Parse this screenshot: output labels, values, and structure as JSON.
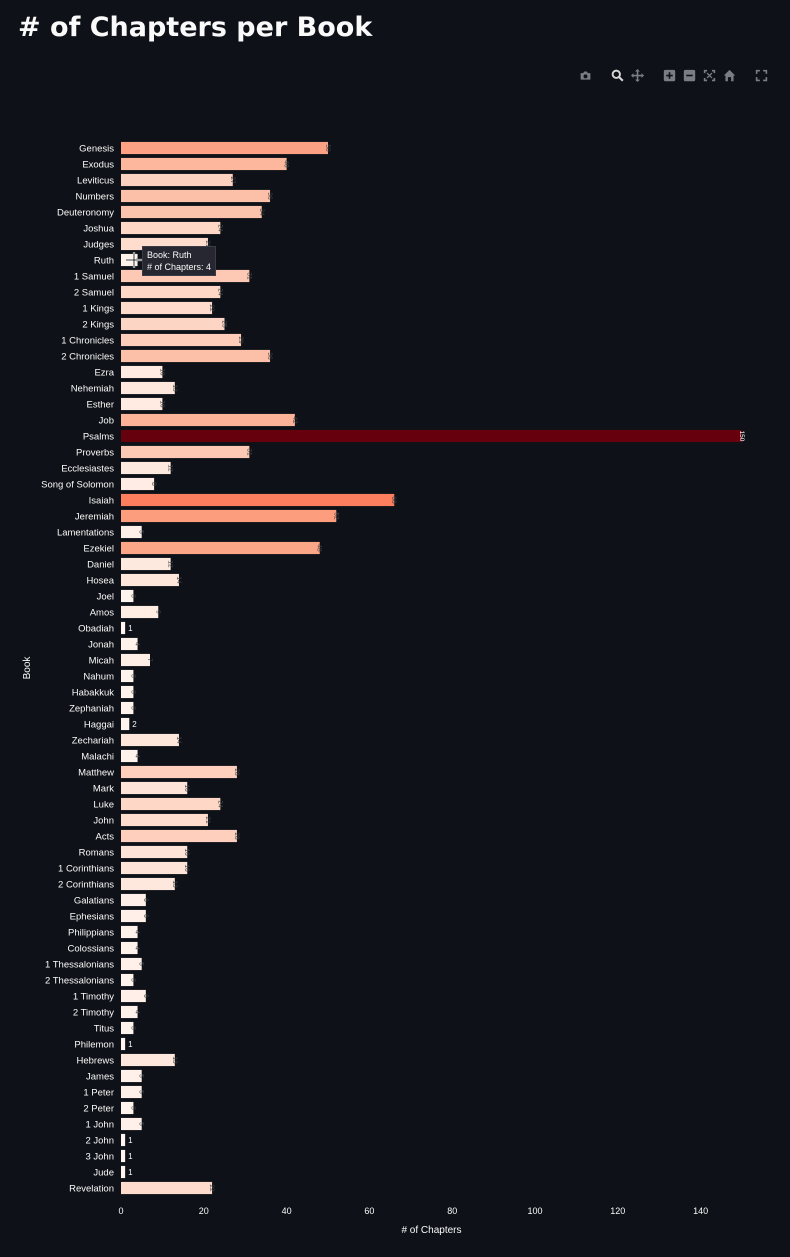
{
  "page": {
    "title": "# of Chapters per Book"
  },
  "modebar": {
    "buttons": [
      "camera-icon",
      "zoom-icon",
      "pan-icon",
      "zoom-in-icon",
      "zoom-out-icon",
      "autoscale-icon",
      "home-icon",
      "fullscreen-icon"
    ]
  },
  "tooltip": {
    "line1": "Book: Ruth",
    "line2": "# of Chapters: 4"
  },
  "chart_data": {
    "type": "bar",
    "orientation": "horizontal",
    "xlabel": "# of Chapters",
    "ylabel": "Book",
    "xlim": [
      0,
      150
    ],
    "xticks": [
      0,
      20,
      40,
      60,
      80,
      100,
      120,
      140
    ],
    "grid": false,
    "colorscale": "reds",
    "categories": [
      "Genesis",
      "Exodus",
      "Leviticus",
      "Numbers",
      "Deuteronomy",
      "Joshua",
      "Judges",
      "Ruth",
      "1 Samuel",
      "2 Samuel",
      "1 Kings",
      "2 Kings",
      "1 Chronicles",
      "2 Chronicles",
      "Ezra",
      "Nehemiah",
      "Esther",
      "Job",
      "Psalms",
      "Proverbs",
      "Ecclesiastes",
      "Song of Solomon",
      "Isaiah",
      "Jeremiah",
      "Lamentations",
      "Ezekiel",
      "Daniel",
      "Hosea",
      "Joel",
      "Amos",
      "Obadiah",
      "Jonah",
      "Micah",
      "Nahum",
      "Habakkuk",
      "Zephaniah",
      "Haggai",
      "Zechariah",
      "Malachi",
      "Matthew",
      "Mark",
      "Luke",
      "John",
      "Acts",
      "Romans",
      "1 Corinthians",
      "2 Corinthians",
      "Galatians",
      "Ephesians",
      "Philippians",
      "Colossians",
      "1 Thessalonians",
      "2 Thessalonians",
      "1 Timothy",
      "2 Timothy",
      "Titus",
      "Philemon",
      "Hebrews",
      "James",
      "1 Peter",
      "2 Peter",
      "1 John",
      "2 John",
      "3 John",
      "Jude",
      "Revelation"
    ],
    "values": [
      50,
      40,
      27,
      36,
      34,
      24,
      21,
      4,
      31,
      24,
      22,
      25,
      29,
      36,
      10,
      13,
      10,
      42,
      150,
      31,
      12,
      8,
      66,
      52,
      5,
      48,
      12,
      14,
      3,
      9,
      1,
      4,
      7,
      3,
      3,
      3,
      2,
      14,
      4,
      28,
      16,
      24,
      21,
      28,
      16,
      16,
      13,
      6,
      6,
      4,
      4,
      5,
      3,
      6,
      4,
      3,
      1,
      13,
      5,
      5,
      3,
      5,
      1,
      1,
      1,
      22
    ]
  }
}
